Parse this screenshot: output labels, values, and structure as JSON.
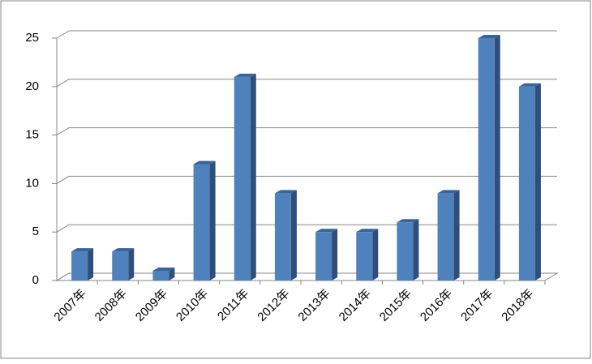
{
  "chart_data": {
    "type": "bar",
    "categories": [
      "2007年",
      "2008年",
      "2009年",
      "2010年",
      "2011年",
      "2012年",
      "2013年",
      "2014年",
      "2015年",
      "2016年",
      "2017年",
      "2018年"
    ],
    "values": [
      3,
      3,
      1,
      12,
      21,
      9,
      5,
      5,
      6,
      9,
      25,
      20
    ],
    "color": "#4f81bd",
    "ylim": [
      0,
      25
    ],
    "yticks": [
      0,
      5,
      10,
      15,
      20,
      25
    ],
    "grid": true
  }
}
